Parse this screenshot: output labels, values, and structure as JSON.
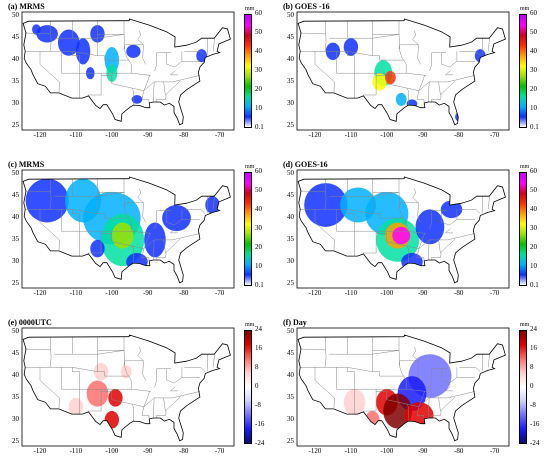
{
  "panels": [
    {
      "title": "(a) MRMS",
      "unit": "mm",
      "scale": "precip"
    },
    {
      "title": "(b) GOES -16",
      "unit": "mm",
      "scale": "precip"
    },
    {
      "title": "(c) MRMS",
      "unit": "mm",
      "scale": "precip"
    },
    {
      "title": "(d) GOES-16",
      "unit": "mm",
      "scale": "precip"
    },
    {
      "title": "(e) 0000UTC",
      "unit": "mm",
      "scale": "diff"
    },
    {
      "title": "(f) Day",
      "unit": "mm",
      "scale": "diff"
    }
  ],
  "axes": {
    "lat_ticks": [
      "50",
      "45",
      "40",
      "35",
      "30",
      "25"
    ],
    "lon_ticks": [
      "-120",
      "-110",
      "-100",
      "-90",
      "-80",
      "-70"
    ]
  },
  "colorbars": {
    "precip": {
      "ticks": [
        "60",
        "50",
        "40",
        "30",
        "20",
        "10",
        "0.1"
      ],
      "colors": [
        "#ffffff",
        "#1030ff",
        "#00b0ff",
        "#00e0a0",
        "#00c000",
        "#a0e000",
        "#ffff00",
        "#ffa000",
        "#ff3000",
        "#d00020",
        "#ff00ff",
        "#c000ff"
      ]
    },
    "diff": {
      "ticks": [
        "24",
        "16",
        "8",
        "0",
        "-8",
        "-16",
        "-24"
      ],
      "colors": [
        "#0a0a6a",
        "#1a1aff",
        "#7070ff",
        "#d0d0ff",
        "#ffffff",
        "#ffd0d0",
        "#ff7070",
        "#e00000",
        "#800000"
      ]
    }
  }
}
